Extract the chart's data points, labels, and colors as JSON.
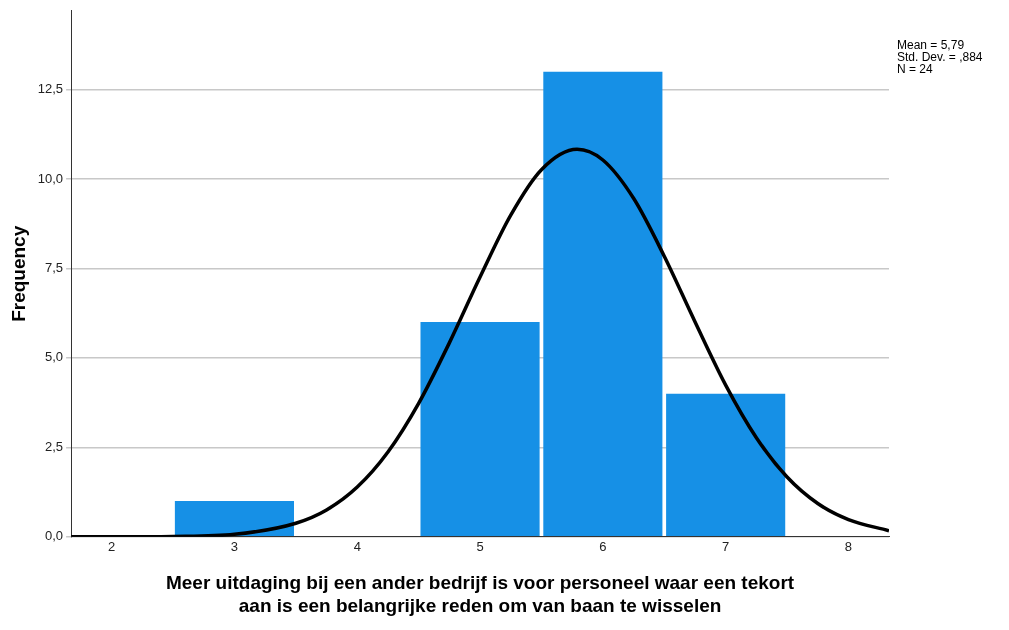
{
  "chart_data": {
    "type": "histogram",
    "xlabel": "Meer uitdaging bij een ander bedrijf is voor personeel waar een tekort\naan is een belangrijke reden om van baan te wisselen",
    "ylabel": "Frequency",
    "bins": [
      2.5,
      3.5,
      4.5,
      5.5,
      6.5,
      7.5
    ],
    "values": [
      1,
      0,
      6,
      13,
      4
    ],
    "color": "#1690e6",
    "series": [
      {
        "type": "line",
        "color": "#000000",
        "x": [
          1.67,
          2,
          2.5,
          3,
          3.5,
          3.75,
          4,
          4.25,
          4.5,
          4.75,
          5,
          5.25,
          5.5,
          5.79,
          6,
          6.25,
          6.5,
          6.75,
          7,
          7.25,
          7.5,
          7.75,
          8,
          8.33
        ],
        "values": [
          0,
          0,
          0.01,
          0.07,
          0.38,
          0.75,
          1.39,
          2.37,
          3.73,
          5.42,
          7.26,
          8.99,
          10.26,
          10.83,
          10.53,
          9.46,
          7.84,
          6.01,
          4.24,
          2.77,
          1.67,
          0.93,
          0.48,
          0.17
        ]
      }
    ],
    "marker": "none",
    "line_style": "solid",
    "xlim": [
      1.67,
      8.33
    ],
    "xticks": [
      2,
      3,
      4,
      5,
      6,
      7,
      8
    ],
    "ylim": [
      0,
      14.7
    ],
    "yticks": [
      {
        "value": 0,
        "label": "0,0"
      },
      {
        "value": 2.5,
        "label": "2,5"
      },
      {
        "value": 5,
        "label": "5,0"
      },
      {
        "value": 7.5,
        "label": "7,5"
      },
      {
        "value": 10,
        "label": "10,0"
      },
      {
        "value": 12.5,
        "label": "12,5"
      }
    ],
    "grid": "y",
    "annotations": [
      "Mean = 5,79",
      "Std. Dev. = ,884",
      "N = 24"
    ]
  }
}
